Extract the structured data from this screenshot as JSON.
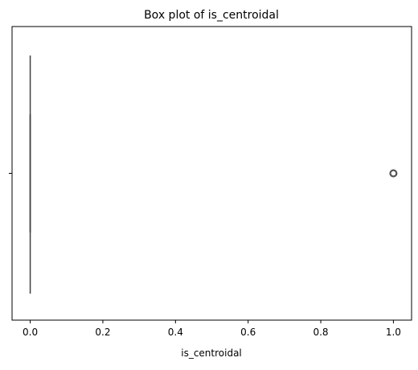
{
  "chart_data": {
    "type": "box",
    "title": "Box plot of is_centroidal",
    "xlabel": "is_centroidal",
    "ylabel": "",
    "orientation": "horizontal",
    "xlim": [
      -0.05,
      1.05
    ],
    "xticks": [
      0.0,
      0.2,
      0.4,
      0.6,
      0.8,
      1.0
    ],
    "xtick_labels": [
      "0.0",
      "0.2",
      "0.4",
      "0.6",
      "0.8",
      "1.0"
    ],
    "grid": false,
    "series": [
      {
        "min": 0.0,
        "q1": 0.0,
        "median": 0.0,
        "q3": 0.0,
        "max": 0.0,
        "outliers": [
          1.0
        ]
      }
    ],
    "colors": {
      "box_fill": "#4c72b0",
      "line": "#3f3f3f",
      "axes": "#000000"
    }
  }
}
